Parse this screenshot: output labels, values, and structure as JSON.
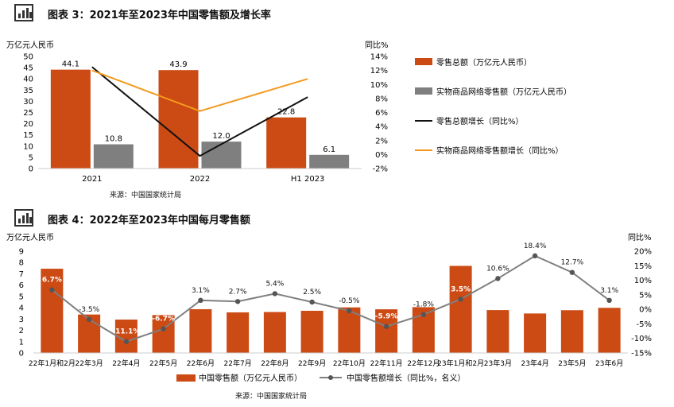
{
  "chart1": {
    "title": "图表 3：2021年至2023年中国零售额及增长率",
    "left_unit": "万亿元人民币",
    "right_unit": "同比%",
    "source": "来源：中国国家统计局",
    "colors": {
      "total": "#CC4A14",
      "online": "#7F7F7F",
      "total_growth": "#111111",
      "online_growth": "#F39A1E"
    }
  },
  "chart2": {
    "title": "图表 4：2022年至2023年中国每月零售额",
    "left_unit": "万亿元人民币",
    "right_unit": "同比%",
    "source": "来源：中国国家统计局",
    "colors": {
      "bar": "#CC4A14",
      "line": "#7F7F7F"
    }
  },
  "chart_data": [
    {
      "type": "bar",
      "title": "图表 3：2021年至2023年中国零售额及增长率",
      "categories": [
        "2021",
        "2022",
        "H1 2023"
      ],
      "y_left": {
        "label": "万亿元人民币",
        "range": [
          0,
          50
        ],
        "ticks": [
          "0",
          "5",
          "10",
          "15",
          "20",
          "25",
          "30",
          "35",
          "40",
          "45",
          "50"
        ]
      },
      "y_right": {
        "label": "同比%",
        "range": [
          -2,
          14
        ],
        "ticks": [
          "-2%",
          "0%",
          "2%",
          "4%",
          "6%",
          "8%",
          "10%",
          "12%",
          "14%"
        ]
      },
      "series": [
        {
          "name": "零售总额（万亿元人民币）",
          "kind": "bar",
          "axis": "left",
          "values": [
            44.1,
            43.9,
            22.8
          ],
          "labels": [
            "44.1",
            "43.9",
            "22.8"
          ]
        },
        {
          "name": "实物商品网络零售额（万亿元人民币）",
          "kind": "bar",
          "axis": "left",
          "values": [
            10.8,
            12.0,
            6.1
          ],
          "labels": [
            "10.8",
            "12.0",
            "6.1"
          ]
        },
        {
          "name": "零售总额增长（同比%）",
          "kind": "line",
          "axis": "right",
          "values": [
            12.5,
            -0.2,
            8.2
          ]
        },
        {
          "name": "实物商品网络零售额增长（同比%）",
          "kind": "line",
          "axis": "right",
          "values": [
            12.0,
            6.2,
            10.8
          ]
        }
      ],
      "legend_position": "right",
      "grid": false
    },
    {
      "type": "bar",
      "title": "图表 4：2022年至2023年中国每月零售额",
      "categories": [
        "22年1月和2月",
        "22年3月",
        "22年4月",
        "22年5月",
        "22年6月",
        "22年7月",
        "22年8月",
        "22年9月",
        "22年10月",
        "22年11月",
        "22年12月",
        "23年1月和2月",
        "23年3月",
        "23年4月",
        "23年5月",
        "23年6月"
      ],
      "y_left": {
        "label": "万亿元人民币",
        "range": [
          0,
          9
        ],
        "ticks": [
          "0",
          "1",
          "2",
          "3",
          "4",
          "5",
          "6",
          "7",
          "8",
          "9"
        ]
      },
      "y_right": {
        "label": "同比%",
        "range": [
          -15,
          20
        ],
        "ticks": [
          "-15%",
          "-10%",
          "-5%",
          "0%",
          "5%",
          "10%",
          "15%",
          "20%"
        ]
      },
      "series": [
        {
          "name": "中国零售额（万亿元人民币）",
          "kind": "bar",
          "axis": "left",
          "values": [
            7.45,
            3.4,
            2.95,
            3.35,
            3.87,
            3.59,
            3.62,
            3.73,
            4.03,
            3.86,
            4.05,
            7.7,
            3.79,
            3.49,
            3.78,
            3.99
          ]
        },
        {
          "name": "中国零售额增长（同比%，名义）",
          "kind": "line",
          "axis": "right",
          "values": [
            6.7,
            -3.5,
            -11.1,
            -6.7,
            3.1,
            2.7,
            5.4,
            2.5,
            -0.5,
            -5.9,
            -1.8,
            3.5,
            10.6,
            18.4,
            12.7,
            3.1
          ],
          "labels": [
            "6.7%",
            "-3.5%",
            "-11.1%",
            "-6.7%",
            "3.1%",
            "2.7%",
            "5.4%",
            "2.5%",
            "-0.5%",
            "-5.9%",
            "-1.8%",
            "3.5%",
            "10.6%",
            "18.4%",
            "12.7%",
            "3.1%"
          ]
        }
      ],
      "legend_position": "bottom",
      "grid": false
    }
  ]
}
